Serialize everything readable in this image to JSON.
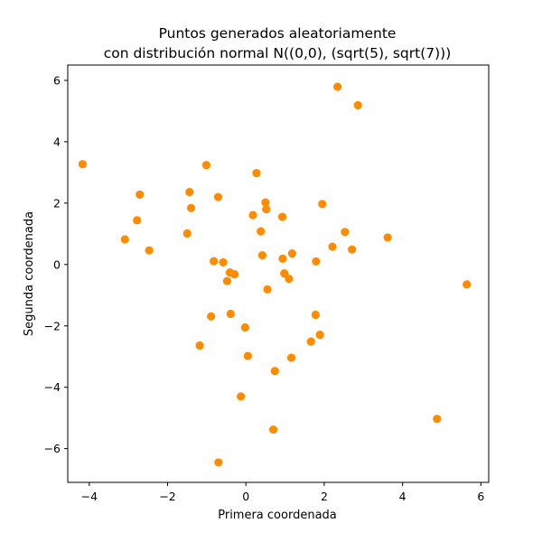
{
  "chart_data": {
    "type": "scatter",
    "title_lines": [
      "Puntos generados aleatoriamente",
      "con distribución normal  N((0,0), (sqrt(5), sqrt(7)))"
    ],
    "xlabel": "Primera coordenada",
    "ylabel": "Segunda coordenada",
    "xlim": [
      -4.55,
      6.2
    ],
    "ylim": [
      -7.1,
      6.5
    ],
    "xticks": [
      -4,
      -2,
      0,
      2,
      4,
      6
    ],
    "yticks": [
      -6,
      -4,
      -2,
      0,
      2,
      4,
      6
    ],
    "grid": false,
    "marker_color": "#ff8c00",
    "series": [
      {
        "points": [
          [
            -4.17,
            3.27
          ],
          [
            -1.01,
            3.24
          ],
          [
            0.27,
            2.98
          ],
          [
            -1.44,
            2.36
          ],
          [
            -2.71,
            2.28
          ],
          [
            -0.71,
            2.2
          ],
          [
            0.5,
            2.02
          ],
          [
            1.95,
            1.97
          ],
          [
            -1.4,
            1.84
          ],
          [
            0.52,
            1.8
          ],
          [
            0.18,
            1.61
          ],
          [
            0.93,
            1.55
          ],
          [
            -2.78,
            1.44
          ],
          [
            0.38,
            1.08
          ],
          [
            2.53,
            1.06
          ],
          [
            -1.5,
            1.01
          ],
          [
            3.62,
            0.88
          ],
          [
            -3.09,
            0.82
          ],
          [
            2.21,
            0.58
          ],
          [
            2.71,
            0.49
          ],
          [
            -2.47,
            0.46
          ],
          [
            1.18,
            0.36
          ],
          [
            0.42,
            0.3
          ],
          [
            0.94,
            0.19
          ],
          [
            -0.82,
            0.11
          ],
          [
            1.79,
            0.1
          ],
          [
            -0.58,
            0.07
          ],
          [
            -0.41,
            -0.26
          ],
          [
            -0.29,
            -0.32
          ],
          [
            0.98,
            -0.29
          ],
          [
            -0.48,
            -0.54
          ],
          [
            1.1,
            -0.47
          ],
          [
            0.55,
            -0.81
          ],
          [
            5.64,
            -0.65
          ],
          [
            -0.39,
            -1.61
          ],
          [
            -0.89,
            -1.69
          ],
          [
            1.78,
            -1.64
          ],
          [
            -0.02,
            -2.05
          ],
          [
            1.89,
            -2.29
          ],
          [
            1.66,
            -2.51
          ],
          [
            -1.18,
            -2.64
          ],
          [
            0.05,
            -2.98
          ],
          [
            1.16,
            -3.04
          ],
          [
            0.74,
            -3.47
          ],
          [
            -0.13,
            -4.3
          ],
          [
            4.88,
            -5.03
          ],
          [
            0.7,
            -5.38
          ],
          [
            -0.7,
            -6.45
          ],
          [
            2.34,
            5.79
          ],
          [
            2.86,
            5.19
          ]
        ]
      }
    ]
  }
}
